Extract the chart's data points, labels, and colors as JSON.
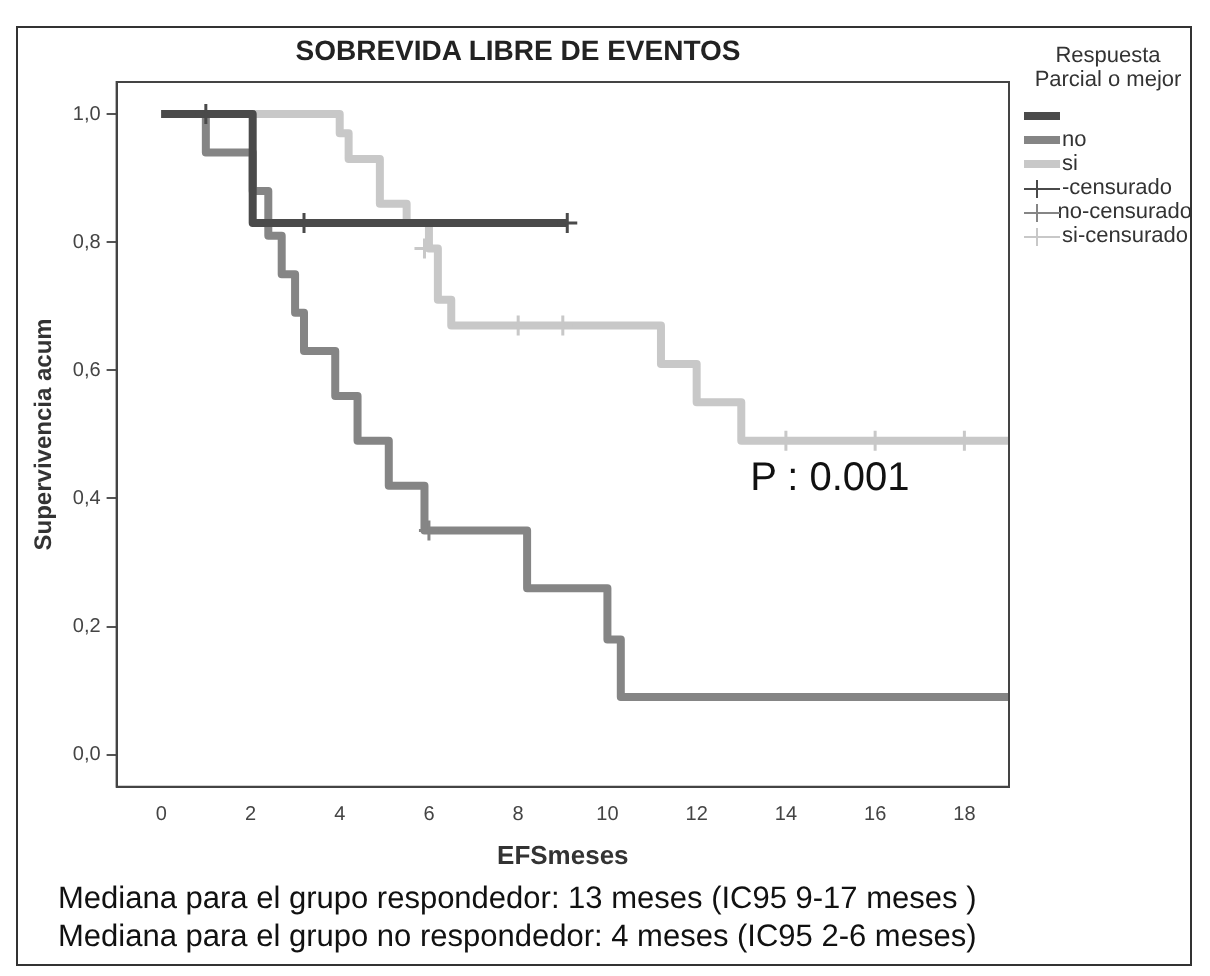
{
  "chart_data": {
    "type": "step",
    "title": "SOBREVIDA LIBRE DE EVENTOS",
    "xlabel": "EFSmeses",
    "ylabel": "Supervivencia acum",
    "legend_title": "Respuesta Parcial o mejor",
    "legend": "right",
    "grid": false,
    "xlim": [
      -1,
      19
    ],
    "xticks": [
      0,
      2,
      4,
      6,
      8,
      10,
      12,
      14,
      16,
      18
    ],
    "ylim": [
      -0.05,
      1.05
    ],
    "yticks": [
      {
        "value": 0,
        "label": "0,0"
      },
      {
        "value": 0.2,
        "label": "0,2"
      },
      {
        "value": 0.4,
        "label": "0,4"
      },
      {
        "value": 0.6,
        "label": "0,6"
      },
      {
        "value": 0.8,
        "label": "0,8"
      },
      {
        "value": 1,
        "label": "1,0"
      }
    ],
    "series": [
      {
        "color": "#4a4a4a",
        "x": [
          0,
          2.05,
          9.1
        ],
        "values": [
          1,
          0.83,
          0.83
        ]
      },
      {
        "name": "no",
        "color": "#858585",
        "x": [
          0,
          1,
          2.05,
          2.4,
          2.7,
          3,
          3.2,
          3.9,
          4.4,
          5.1,
          5.9,
          8.2,
          10,
          10.3,
          19
        ],
        "values": [
          1,
          0.94,
          0.88,
          0.81,
          0.75,
          0.69,
          0.63,
          0.56,
          0.49,
          0.42,
          0.35,
          0.26,
          0.18,
          0.09,
          0.09
        ]
      },
      {
        "name": "si",
        "color": "#c8c8c8",
        "x": [
          0,
          4,
          4.2,
          4.9,
          5.5,
          6,
          6.2,
          6.5,
          11.2,
          12,
          13,
          19
        ],
        "values": [
          1,
          0.97,
          0.93,
          0.86,
          0.83,
          0.79,
          0.71,
          0.67,
          0.61,
          0.55,
          0.49,
          0.49
        ]
      },
      {
        "name": "-censurado",
        "type": "scatter",
        "marker": "cross",
        "color": "#4a4a4a",
        "x": [
          1,
          3.2,
          9.1
        ],
        "values": [
          1,
          0.83,
          0.83
        ]
      },
      {
        "name": "no-censurado",
        "type": "scatter",
        "marker": "cross",
        "color": "#858585",
        "x": [
          6
        ],
        "values": [
          0.35
        ]
      },
      {
        "name": "si-censurado",
        "type": "scatter",
        "marker": "cross",
        "color": "#c8c8c8",
        "x": [
          5.9,
          8,
          9,
          14,
          16,
          18
        ],
        "values": [
          0.79,
          0.67,
          0.67,
          0.49,
          0.49,
          0.49
        ]
      }
    ],
    "annotations": [
      "P : 0.001",
      "Mediana para el grupo respondedor: 13 meses (IC95 9-17 meses )",
      "Mediana para el grupo no respondedor: 4 meses (IC95 2-6 meses)"
    ]
  }
}
